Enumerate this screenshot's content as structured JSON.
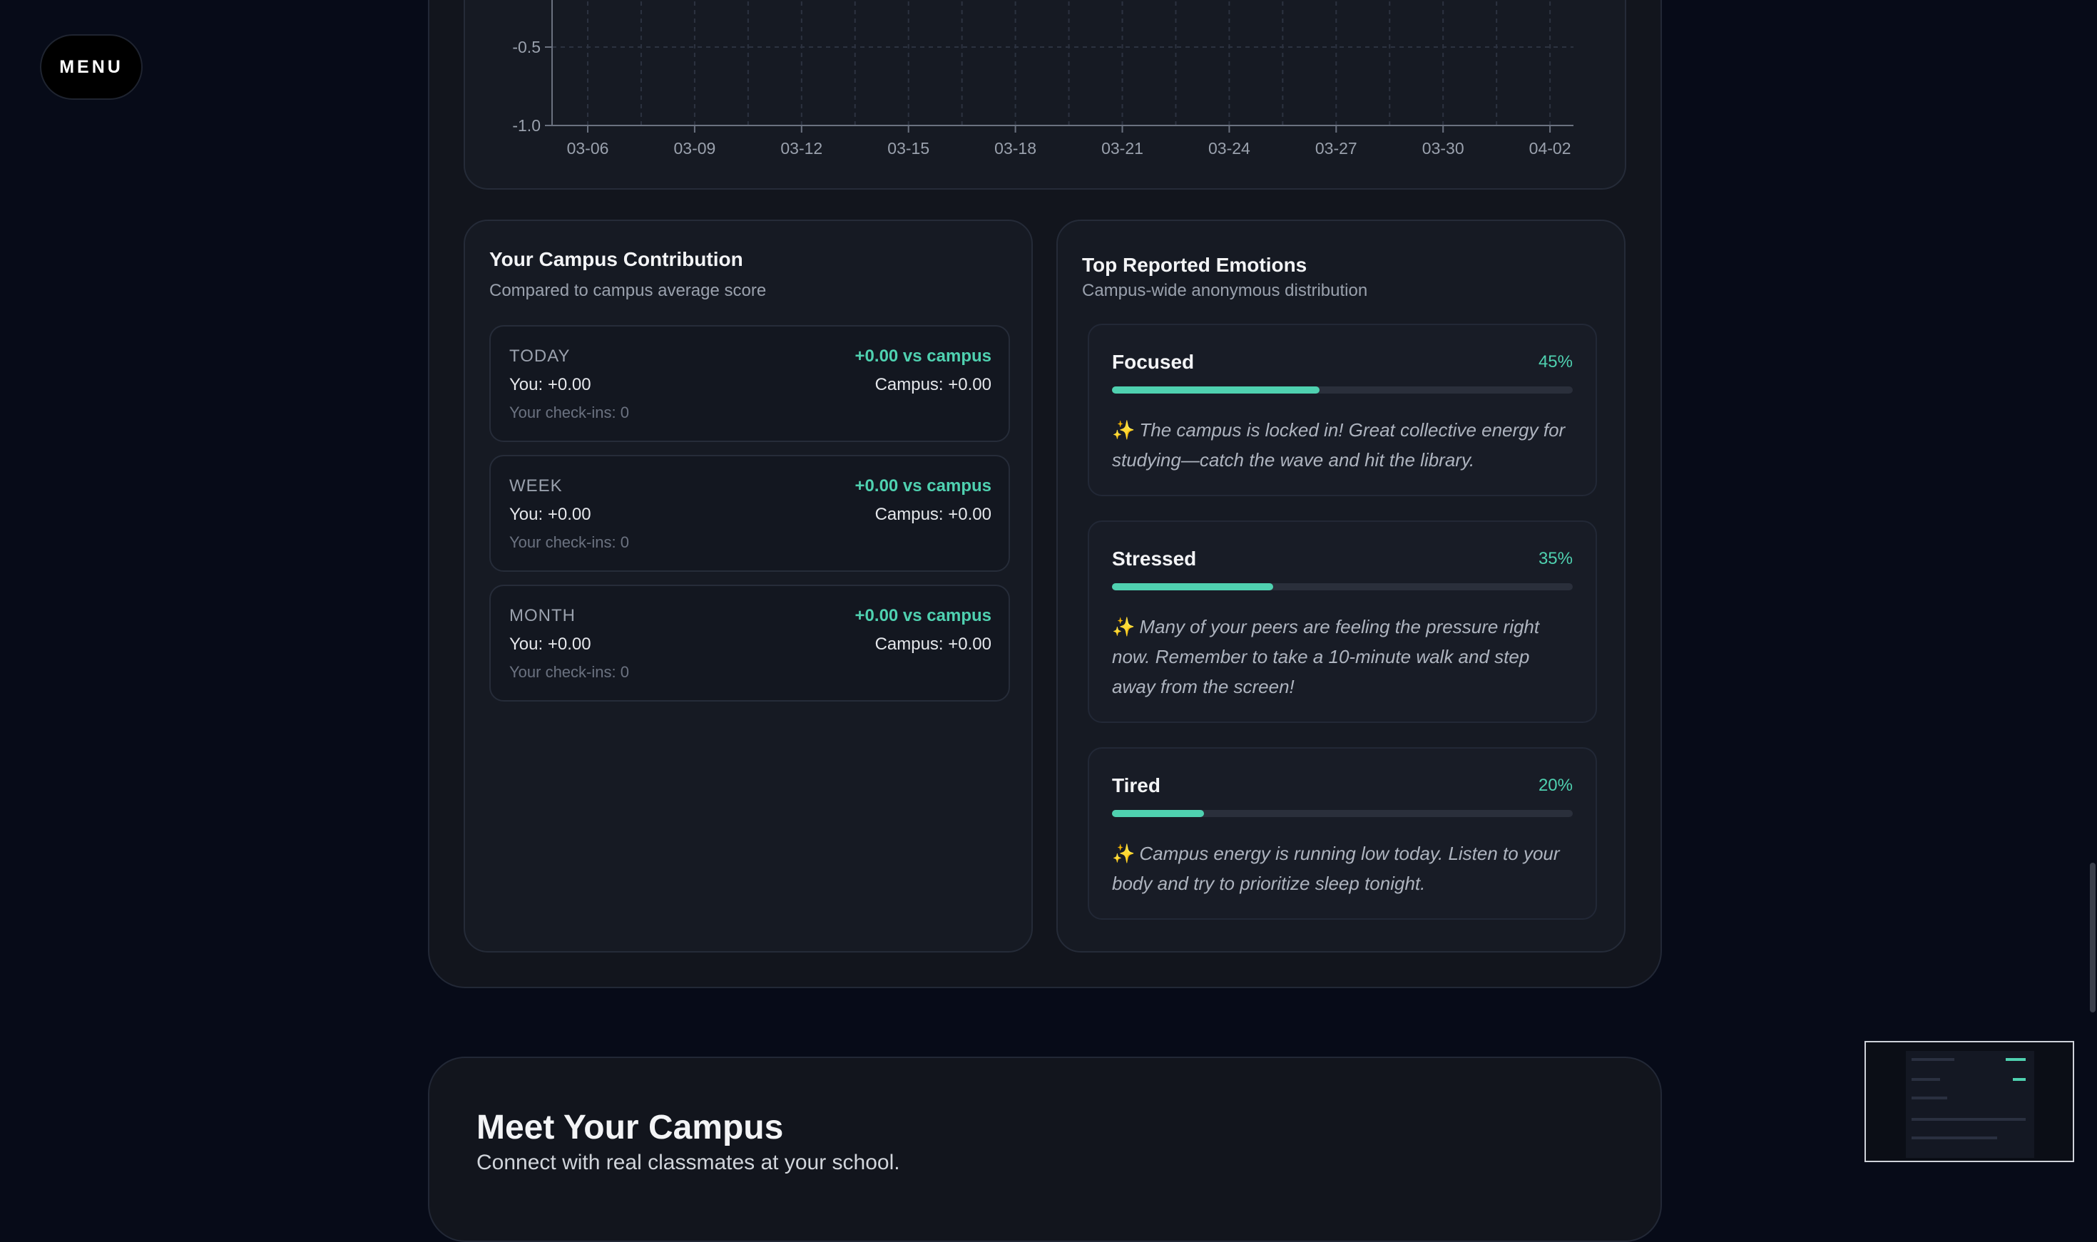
{
  "menu": {
    "label": "MENU"
  },
  "chart_data": {
    "type": "line",
    "title": "",
    "xlabel": "",
    "ylabel": "",
    "ylim": [
      -1.0,
      1.0
    ],
    "y_ticks": [
      "-0.5",
      "-1.0"
    ],
    "x": [
      "03-06",
      "03-09",
      "03-12",
      "03-15",
      "03-18",
      "03-21",
      "03-24",
      "03-27",
      "03-30",
      "04-02"
    ],
    "grid": true,
    "series": []
  },
  "contribution": {
    "title": "Your Campus Contribution",
    "subtitle": "Compared to campus average score",
    "rows": [
      {
        "period": "TODAY",
        "delta": "+0.00 vs campus",
        "you": "You: +0.00",
        "campus": "Campus: +0.00",
        "checkins": "Your check-ins: 0"
      },
      {
        "period": "WEEK",
        "delta": "+0.00 vs campus",
        "you": "You: +0.00",
        "campus": "Campus: +0.00",
        "checkins": "Your check-ins: 0"
      },
      {
        "period": "MONTH",
        "delta": "+0.00 vs campus",
        "you": "You: +0.00",
        "campus": "Campus: +0.00",
        "checkins": "Your check-ins: 0"
      }
    ]
  },
  "emotions": {
    "title": "Top Reported Emotions",
    "subtitle": "Campus-wide anonymous distribution",
    "accent": "#4fd1b0",
    "items": [
      {
        "name": "Focused",
        "percent": "45%",
        "level": 0.45,
        "spark": "✨",
        "message": "The campus is locked in! Great collective energy for studying—catch the wave and hit the library."
      },
      {
        "name": "Stressed",
        "percent": "35%",
        "level": 0.35,
        "spark": "✨",
        "message": "Many of your peers are feeling the pressure right now. Remember to take a 10-minute walk and step away from the screen!"
      },
      {
        "name": "Tired",
        "percent": "20%",
        "level": 0.2,
        "spark": "✨",
        "message": "Campus energy is running low today. Listen to your body and try to prioritize sleep tonight."
      }
    ]
  },
  "meet": {
    "title": "Meet Your Campus",
    "subtitle": "Connect with real classmates at your school."
  }
}
